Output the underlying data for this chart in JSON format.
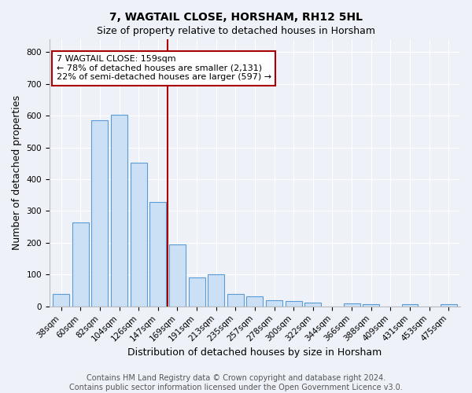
{
  "title": "7, WAGTAIL CLOSE, HORSHAM, RH12 5HL",
  "subtitle": "Size of property relative to detached houses in Horsham",
  "xlabel": "Distribution of detached houses by size in Horsham",
  "ylabel": "Number of detached properties",
  "bar_labels": [
    "38sqm",
    "60sqm",
    "82sqm",
    "104sqm",
    "126sqm",
    "147sqm",
    "169sqm",
    "191sqm",
    "213sqm",
    "235sqm",
    "257sqm",
    "278sqm",
    "300sqm",
    "322sqm",
    "344sqm",
    "366sqm",
    "388sqm",
    "409sqm",
    "431sqm",
    "453sqm",
    "475sqm"
  ],
  "bar_values": [
    38,
    265,
    585,
    603,
    453,
    328,
    195,
    90,
    100,
    38,
    32,
    20,
    16,
    11,
    0,
    9,
    6,
    0,
    7,
    0,
    8
  ],
  "bar_color": "#cce0f5",
  "bar_edge_color": "#5b9bd5",
  "vline_index": 6,
  "vline_color": "#aa0000",
  "annotation_text": "7 WAGTAIL CLOSE: 159sqm\n← 78% of detached houses are smaller (2,131)\n22% of semi-detached houses are larger (597) →",
  "annotation_box_color": "white",
  "annotation_box_edge": "#aa0000",
  "ylim": [
    0,
    840
  ],
  "yticks": [
    0,
    100,
    200,
    300,
    400,
    500,
    600,
    700,
    800
  ],
  "footer_line1": "Contains HM Land Registry data © Crown copyright and database right 2024.",
  "footer_line2": "Contains public sector information licensed under the Open Government Licence v3.0.",
  "bg_color": "#eef2f8",
  "title_fontsize": 10,
  "subtitle_fontsize": 9,
  "axis_label_fontsize": 9,
  "tick_fontsize": 7.5,
  "annotation_fontsize": 8,
  "footer_fontsize": 7
}
